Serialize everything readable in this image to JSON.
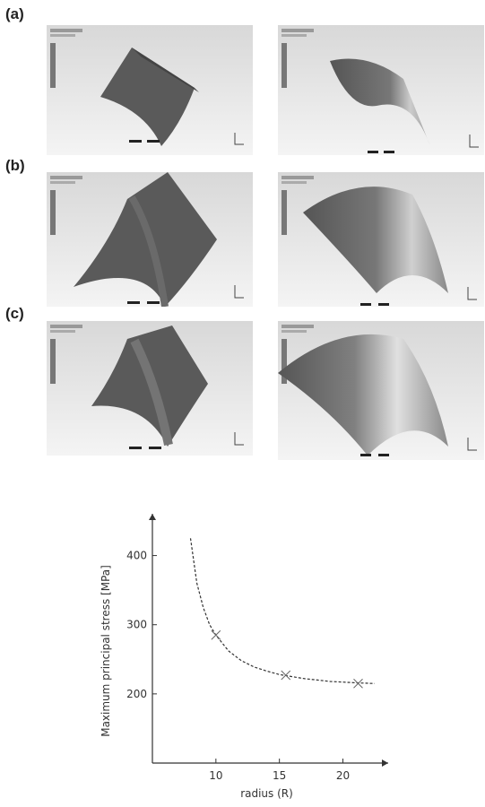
{
  "figure": {
    "panels": [
      {
        "label": "(a)"
      },
      {
        "label": "(b)"
      },
      {
        "label": "(c)"
      }
    ]
  },
  "chart_data": {
    "type": "scatter",
    "xlabel": "radius (R)",
    "ylabel": "Maximum principal stress  [MPa]",
    "xticks": [
      10,
      15,
      20
    ],
    "yticks": [
      200,
      300,
      400
    ],
    "xlim": [
      5,
      23
    ],
    "ylim": [
      100,
      450
    ],
    "grid": false,
    "points": [
      {
        "x": 10,
        "y": 285
      },
      {
        "x": 15.5,
        "y": 227
      },
      {
        "x": 21.2,
        "y": 215
      }
    ],
    "fit_curve": {
      "style": "dashed",
      "x": [
        8,
        8.5,
        9,
        9.5,
        10,
        11,
        12,
        13,
        14,
        15,
        16,
        17,
        18,
        19,
        20,
        21,
        22.5
      ],
      "y": [
        425,
        360,
        325,
        300,
        285,
        262,
        248,
        239,
        233,
        228,
        225,
        222,
        220,
        218,
        217,
        216,
        215
      ]
    }
  }
}
